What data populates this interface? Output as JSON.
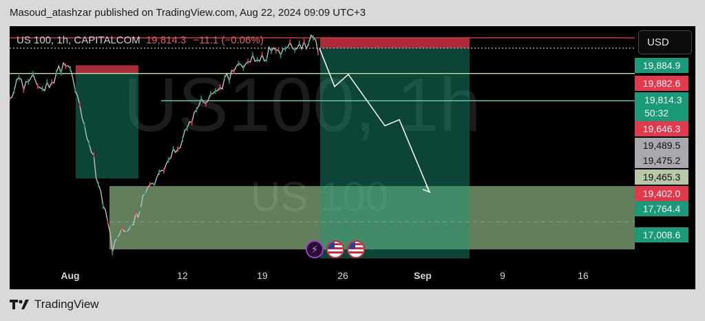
{
  "publisher_line": "Masoud_atashzar published on TradingView.com, Aug 22, 2024 09:09 UTC+3",
  "symbol": {
    "name": "US 100, 1h, CAPITALCOM",
    "price": "19,814.3",
    "change": "−11.1 (−0.06%)"
  },
  "watermark": {
    "main": "US100, 1h",
    "sub": "US 100"
  },
  "currency_button": "USD",
  "price_tags": [
    {
      "label": "19,884.9",
      "style": "green"
    },
    {
      "label": "19,882.6",
      "style": "red"
    },
    {
      "label": "19,814.3",
      "sub": "50:32",
      "style": "green"
    },
    {
      "label": "19,646.3",
      "style": "red"
    },
    {
      "label": "19,489.5",
      "style": "grey"
    },
    {
      "label": "19,475.2",
      "style": "grey"
    },
    {
      "label": "19,465.3",
      "style": "light"
    },
    {
      "label": "19,402.0",
      "style": "red"
    },
    {
      "label": "17,764.4",
      "style": "green"
    },
    {
      "label": "17,008.6",
      "style": "green"
    }
  ],
  "time_ticks": [
    {
      "label": "Aug",
      "bold": true
    },
    {
      "label": "12",
      "bold": false
    },
    {
      "label": "19",
      "bold": false
    },
    {
      "label": "26",
      "bold": false
    },
    {
      "label": "Sep",
      "bold": true
    },
    {
      "label": "9",
      "bold": false
    },
    {
      "label": "16",
      "bold": false
    }
  ],
  "events": [
    {
      "icon": "lightning-icon"
    },
    {
      "icon": "us-flag-icon"
    },
    {
      "icon": "us-flag-icon"
    }
  ],
  "footer": {
    "brand": "TradingView"
  },
  "colors": {
    "up": "#1b9a7a",
    "down": "#e13a4c",
    "bullish_zone": "#1b9a7a",
    "bearish_zone": "#e13a4c",
    "demand_zone": "#b5e6a4"
  },
  "chart_data": {
    "type": "line",
    "title": "US 100, 1h, CAPITALCOM",
    "x_axis": {
      "ticks": [
        "Aug",
        "12",
        "19",
        "26",
        "Sep",
        "9",
        "16"
      ]
    },
    "series": [
      {
        "values": [
          19510,
          19540,
          19600,
          19560,
          19590,
          19620,
          19580,
          19540,
          19560,
          19600,
          19640,
          19680,
          19700,
          19660,
          19560,
          19440,
          19280,
          19200,
          19100,
          18880,
          18780,
          18650,
          18490,
          18560,
          18600,
          18620,
          18640,
          18700,
          18760,
          18840,
          18880,
          18920,
          18980,
          19030,
          19080,
          19130,
          19170,
          19210,
          19260,
          19340,
          19400,
          19450,
          19460,
          19500,
          19560,
          19560,
          19600,
          19620,
          19660,
          19690,
          19700,
          19720,
          19740,
          19750,
          19760,
          19770,
          19800,
          19780,
          19790,
          19810,
          19830,
          19820,
          19840,
          19830,
          19860,
          19870,
          19814.3
        ]
      }
    ],
    "last_price": 19814.3,
    "horizontal_levels": [
      19882.6,
      19814.3,
      19646.3,
      19465.3
    ],
    "zones": [
      {
        "kind": "bearish",
        "from": 19700,
        "to": 19646.3
      },
      {
        "kind": "bullish",
        "from": 19646.3,
        "to": 18950
      },
      {
        "kind": "demand",
        "from": 18900,
        "to": 18480
      },
      {
        "kind": "bearish",
        "from": 19882.6,
        "to": 19814.3
      },
      {
        "kind": "bullish",
        "from": 19814.3,
        "to": 18420
      }
    ],
    "projection": [
      19814.3,
      19560,
      19640,
      19300,
      19340,
      18860
    ],
    "ylim": [
      18380,
      19960
    ],
    "grid": false
  }
}
